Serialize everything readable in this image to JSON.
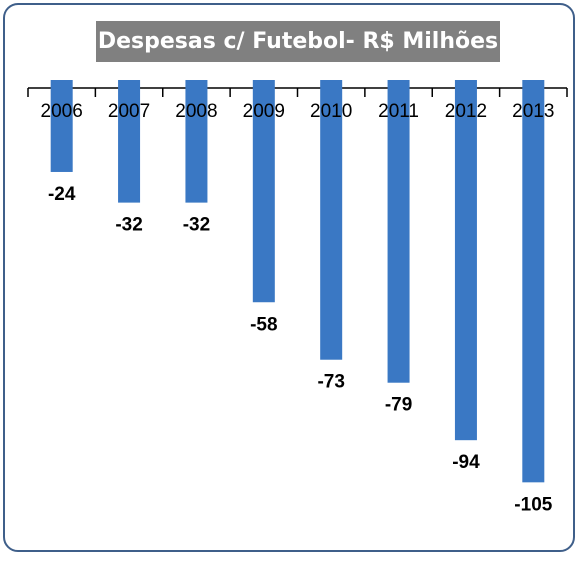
{
  "chart_data": {
    "type": "bar",
    "title": "Despesas c/ Futebol- R$ Milhões",
    "categories": [
      "2006",
      "2007",
      "2008",
      "2009",
      "2010",
      "2011",
      "2012",
      "2013"
    ],
    "values": [
      -24,
      -32,
      -32,
      -58,
      -73,
      -79,
      -94,
      -105
    ],
    "color": "#3a78c4",
    "ylim": [
      -107,
      0
    ]
  }
}
